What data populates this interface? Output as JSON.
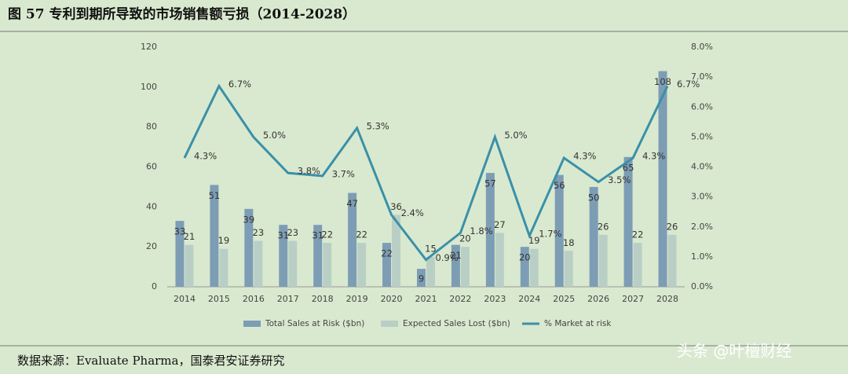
{
  "chart_data": {
    "type": "bar-line",
    "title": "图 57 专利到期所导致的市场销售额亏损（2014-2028）",
    "categories": [
      "2014",
      "2015",
      "2016",
      "2017",
      "2018",
      "2019",
      "2020",
      "2021",
      "2022",
      "2023",
      "2024",
      "2025",
      "2026",
      "2027",
      "2028"
    ],
    "series": [
      {
        "name": "Total Sales at Risk ($bn)",
        "type": "bar",
        "color": "#7d9db5",
        "values": [
          33,
          51,
          39,
          31,
          31,
          47,
          22,
          9,
          21,
          57,
          20,
          56,
          50,
          65,
          108
        ]
      },
      {
        "name": "Expected Sales Lost ($bn)",
        "type": "bar",
        "color": "#b9cfc6",
        "values": [
          21,
          19,
          23,
          23,
          22,
          22,
          36,
          15,
          20,
          27,
          19,
          18,
          26,
          22,
          26
        ]
      },
      {
        "name": "% Market at risk",
        "type": "line",
        "axis": "y2",
        "color": "#3b90a8",
        "values": [
          4.3,
          6.7,
          5.0,
          3.8,
          3.7,
          5.3,
          2.4,
          0.9,
          1.8,
          5.0,
          1.7,
          4.3,
          3.5,
          4.3,
          6.7
        ],
        "value_labels": [
          "4.3%",
          "6.7%",
          "5.0%",
          "3.8%",
          "3.7%",
          "5.3%",
          "2.4%",
          "0.9%",
          "1.8%",
          "5.0%",
          "1.7%",
          "4.3%",
          "3.5%",
          "4.3%",
          "6.7%"
        ]
      }
    ],
    "ylim": [
      0,
      120
    ],
    "yticks": [
      0,
      20,
      40,
      60,
      80,
      100,
      120
    ],
    "y2lim": [
      0,
      8
    ],
    "y2ticks": [
      {
        "value": 0,
        "label": "0.0%"
      },
      {
        "value": 1,
        "label": "1.0%"
      },
      {
        "value": 2,
        "label": "2.0%"
      },
      {
        "value": 3,
        "label": "3.0%"
      },
      {
        "value": 4,
        "label": "4.0%"
      },
      {
        "value": 5,
        "label": "5.0%"
      },
      {
        "value": 6,
        "label": "6.0%"
      },
      {
        "value": 7,
        "label": "7.0%"
      },
      {
        "value": 8,
        "label": "8.0%"
      }
    ],
    "legend": "bottom",
    "source": "数据来源：Evaluate Pharma，国泰君安证券研究",
    "watermark": "头条 @叶檀财经"
  }
}
